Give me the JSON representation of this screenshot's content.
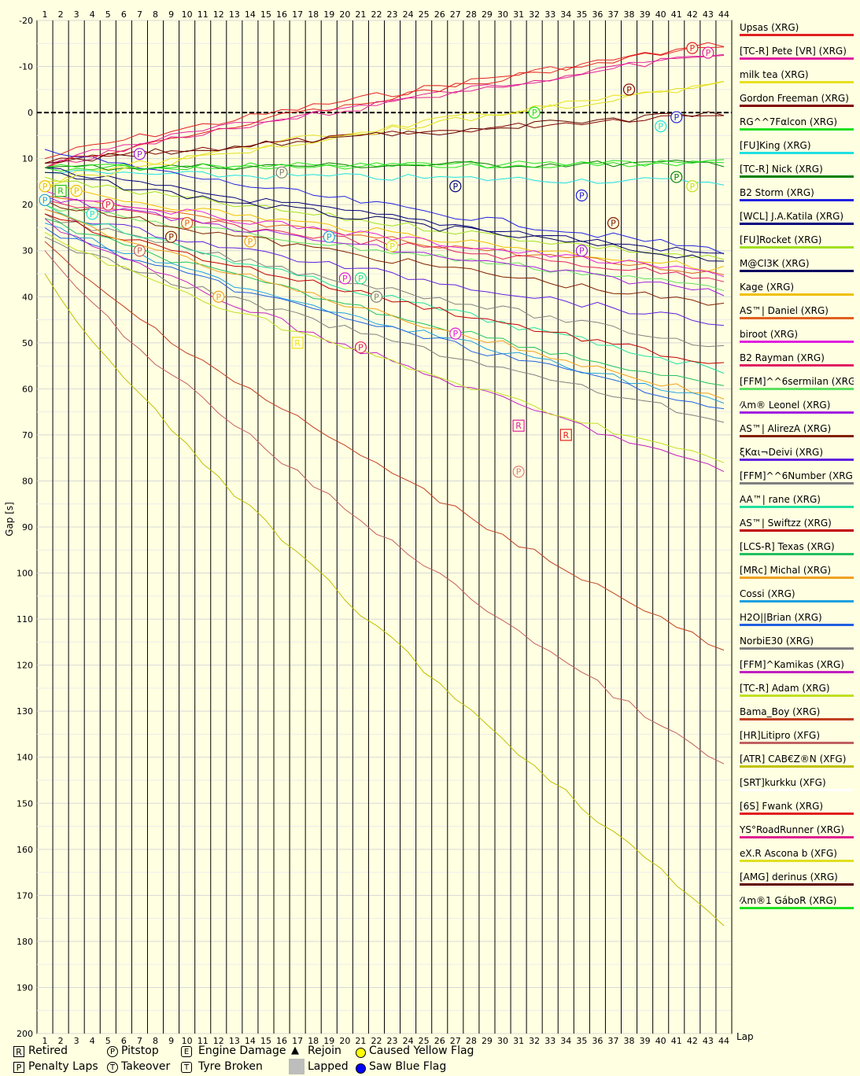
{
  "chart_data": {
    "type": "line",
    "ylabel": "Gap [s]",
    "xlabel": "Lap",
    "xlim": [
      1,
      44
    ],
    "ylim": [
      -20,
      200
    ],
    "y_inverted": true,
    "laps": [
      1,
      2,
      3,
      4,
      5,
      6,
      7,
      8,
      9,
      10,
      11,
      12,
      13,
      14,
      15,
      16,
      17,
      18,
      19,
      20,
      21,
      22,
      23,
      24,
      25,
      26,
      27,
      28,
      29,
      30,
      31,
      32,
      33,
      34,
      35,
      36,
      37,
      38,
      39,
      40,
      41,
      42,
      43,
      44
    ],
    "yticks": [
      -20,
      -10,
      0,
      10,
      20,
      30,
      40,
      50,
      60,
      70,
      80,
      90,
      100,
      110,
      120,
      130,
      140,
      150,
      160,
      170,
      180,
      190,
      200
    ],
    "series": [
      {
        "name": "Upsas (XRG)",
        "color": "#E02020",
        "start": 10,
        "end": -15
      },
      {
        "name": "[TC-R] Pete [VR] (XRG)",
        "color": "#E020A0",
        "start": 11,
        "end": -13
      },
      {
        "name": "milk tea (XRG)",
        "color": "#E8E020",
        "start": 15,
        "end": -6
      },
      {
        "name": "Gordon Freeman (XRG)",
        "color": "#800000",
        "start": 11,
        "end": 0
      },
      {
        "name": "RG^^7Fαlcon (XRG)",
        "color": "#20E020",
        "start": 12,
        "end": 11
      },
      {
        "name": "[FU]King (XRG)",
        "color": "#20E0E0",
        "start": 13,
        "end": 15
      },
      {
        "name": "[TC-R] Nick (XRG)",
        "color": "#008000",
        "start": 12,
        "end": 11
      },
      {
        "name": "B2 Storm (XRG)",
        "color": "#2020E0",
        "start": 8,
        "end": 30
      },
      {
        "name": "[WCL] J.A.Katila (XRG)",
        "color": "#000080",
        "start": 12,
        "end": 31
      },
      {
        "name": "[FU]Rocket (XRG)",
        "color": "#A0E020",
        "start": 14,
        "end": 32
      },
      {
        "name": "M@Cl3K (XRG)",
        "color": "#000060",
        "start": 13,
        "end": 32
      },
      {
        "name": "Kage (XRG)",
        "color": "#F0C000",
        "start": 16,
        "end": 34
      },
      {
        "name": "AS™| Daniel (XRG)",
        "color": "#E06020",
        "start": 18,
        "end": 35
      },
      {
        "name": "biroot (XRG)",
        "color": "#E020E0",
        "start": 17,
        "end": 35
      },
      {
        "name": "B2 Rayman (XRG)",
        "color": "#E02060",
        "start": 19,
        "end": 36
      },
      {
        "name": "[FFM]^^6sermilan (XRG)",
        "color": "#60E060",
        "start": 20,
        "end": 38
      },
      {
        "name": "⁄⅄m® Leonel (XRG)",
        "color": "#A020E0",
        "start": 18,
        "end": 39
      },
      {
        "name": "AS™| AlirezA (XRG)",
        "color": "#802000",
        "start": 19,
        "end": 42
      },
      {
        "name": "ξKαι¬Deivi (XRG)",
        "color": "#6020E0",
        "start": 21,
        "end": 46
      },
      {
        "name": "[FFM]^^6Number (XRG)",
        "color": "#808080",
        "start": 22,
        "end": 51
      },
      {
        "name": "AA™| rane (XRG)",
        "color": "#20E0A0",
        "start": 20,
        "end": 56
      },
      {
        "name": "AS™| Swiftzz (XRG)",
        "color": "#C00000",
        "start": 22,
        "end": 55
      },
      {
        "name": "[LCS-R] Texas (XRG)",
        "color": "#20C060",
        "start": 23,
        "end": 60
      },
      {
        "name": "[MRc] Michal (XRG)",
        "color": "#F0A020",
        "start": 21,
        "end": 62
      },
      {
        "name": "Cossi (XRG)",
        "color": "#20A0E0",
        "start": 24,
        "end": 63
      },
      {
        "name": "H2O||Brian (XRG)",
        "color": "#2060E0",
        "start": 25,
        "end": 64
      },
      {
        "name": "NorbiE30 (XRG)",
        "color": "#808080",
        "start": 27,
        "end": 67
      },
      {
        "name": "[FFM]^Kamikas (XRG)",
        "color": "#C020C0",
        "start": 23,
        "end": 78
      },
      {
        "name": "[TC-R] Adam (XRG)",
        "color": "#C0E020",
        "start": 26,
        "end": 76
      },
      {
        "name": "Bama_Boy (XRG)",
        "color": "#C04020",
        "start": 28,
        "end": 117
      },
      {
        "name": "[HR]Litipro (XFG)",
        "color": "#C06060",
        "start": 30,
        "end": 142
      },
      {
        "name": "[ATR] CAB€Z®N (XFG)",
        "color": "#C0C000",
        "start": 35,
        "end": 176
      },
      {
        "name": "[SRT]kurkku (XFG)",
        "color": "#FFFFFF",
        "start": 0,
        "end": 0
      },
      {
        "name": "[6S] Fwank (XRG)",
        "color": "#E02020",
        "start": 12,
        "end": -15
      },
      {
        "name": "YS°RoadRunner (XRG)",
        "color": "#E02090",
        "start": 12,
        "end": -13
      },
      {
        "name": "eX.R Ascona b (XFG)",
        "color": "#E0E020",
        "start": 16,
        "end": -6
      },
      {
        "name": "[AMG] derinus (XRG)",
        "color": "#600000",
        "start": 11,
        "end": 0
      },
      {
        "name": "⁄⅄m®1 GáboR (XRG)",
        "color": "#20E020",
        "start": 12,
        "end": 11
      }
    ],
    "markers": [
      {
        "type": "P",
        "lap": 7,
        "gap": 9,
        "color": "#A020E0"
      },
      {
        "type": "P",
        "lap": 16,
        "gap": 13,
        "color": "#808080"
      },
      {
        "type": "P",
        "lap": 32,
        "gap": 0,
        "color": "#20E020"
      },
      {
        "type": "P",
        "lap": 38,
        "gap": -5,
        "color": "#800000"
      },
      {
        "type": "P",
        "lap": 42,
        "gap": -14,
        "color": "#E02020"
      },
      {
        "type": "P",
        "lap": 43,
        "gap": -13,
        "color": "#E020A0"
      },
      {
        "type": "P",
        "lap": 41,
        "gap": 1,
        "color": "#2020E0"
      },
      {
        "type": "P",
        "lap": 40,
        "gap": 3,
        "color": "#20E0E0"
      },
      {
        "type": "P",
        "lap": 41,
        "gap": 14,
        "color": "#008000"
      },
      {
        "type": "P",
        "lap": 42,
        "gap": 16,
        "color": "#C0E020"
      },
      {
        "type": "P",
        "lap": 27,
        "gap": 16,
        "color": "#000080"
      },
      {
        "type": "P",
        "lap": 35,
        "gap": 18,
        "color": "#2020E0"
      },
      {
        "type": "P",
        "lap": 37,
        "gap": 24,
        "color": "#802000"
      },
      {
        "type": "P",
        "lap": 35,
        "gap": 30,
        "color": "#A020E0"
      },
      {
        "type": "P",
        "lap": 1,
        "gap": 19,
        "color": "#20A0E0"
      },
      {
        "type": "P",
        "lap": 1,
        "gap": 16,
        "color": "#F0C000"
      },
      {
        "type": "P",
        "lap": 3,
        "gap": 17,
        "color": "#F0C000"
      },
      {
        "type": "P",
        "lap": 5,
        "gap": 20,
        "color": "#E02060"
      },
      {
        "type": "P",
        "lap": 4,
        "gap": 22,
        "color": "#20E0E0"
      },
      {
        "type": "P",
        "lap": 10,
        "gap": 24,
        "color": "#E06020"
      },
      {
        "type": "P",
        "lap": 9,
        "gap": 27,
        "color": "#802000"
      },
      {
        "type": "P",
        "lap": 14,
        "gap": 28,
        "color": "#F0A020"
      },
      {
        "type": "P",
        "lap": 7,
        "gap": 30,
        "color": "#C06060"
      },
      {
        "type": "P",
        "lap": 19,
        "gap": 27,
        "color": "#20A0E0"
      },
      {
        "type": "P",
        "lap": 23,
        "gap": 29,
        "color": "#E0E020"
      },
      {
        "type": "P",
        "lap": 20,
        "gap": 36,
        "color": "#E020E0"
      },
      {
        "type": "P",
        "lap": 21,
        "gap": 36,
        "color": "#20E0A0"
      },
      {
        "type": "P",
        "lap": 12,
        "gap": 40,
        "color": "#F0A020"
      },
      {
        "type": "P",
        "lap": 22,
        "gap": 40,
        "color": "#808080"
      },
      {
        "type": "P",
        "lap": 21,
        "gap": 51,
        "color": "#E02060"
      },
      {
        "type": "P",
        "lap": 27,
        "gap": 48,
        "color": "#E020E0"
      },
      {
        "type": "P",
        "lap": 31,
        "gap": 78,
        "color": "#E08080"
      },
      {
        "type": "R",
        "lap": 2,
        "gap": 17,
        "color": "#20C020"
      },
      {
        "type": "R",
        "lap": 17,
        "gap": 50,
        "color": "#F0E020"
      },
      {
        "type": "R",
        "lap": 31,
        "gap": 68,
        "color": "#E020A0"
      },
      {
        "type": "R",
        "lap": 34,
        "gap": 70,
        "color": "#E02020"
      }
    ],
    "legend_key": [
      {
        "symbol": "R",
        "label": "Retired",
        "shape": "box"
      },
      {
        "symbol": "P",
        "label": "Penalty Laps",
        "shape": "box"
      },
      {
        "symbol": "P",
        "label": "Pitstop",
        "shape": "circle"
      },
      {
        "symbol": "T",
        "label": "Takeover",
        "shape": "circle"
      },
      {
        "symbol": "E",
        "label": "Engine Damage",
        "shape": "pent"
      },
      {
        "symbol": "T",
        "label": "Tyre Broken",
        "shape": "pent"
      },
      {
        "symbol": "▲",
        "label": "Rejoin",
        "shape": "tri"
      },
      {
        "symbol": "",
        "label": "Lapped",
        "shape": "grey"
      },
      {
        "symbol": "",
        "label": "Caused Yellow Flag",
        "shape": "yellow"
      },
      {
        "symbol": "",
        "label": "Saw Blue Flag",
        "shape": "blue"
      }
    ]
  }
}
